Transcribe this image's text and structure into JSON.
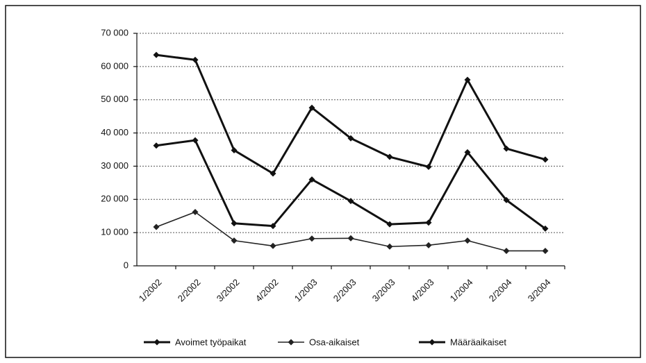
{
  "chart_data": {
    "type": "line",
    "categories": [
      "1/2002",
      "2/2002",
      "3/2002",
      "4/2002",
      "1/2003",
      "2/2003",
      "3/2003",
      "4/2003",
      "1/2004",
      "2/2004",
      "3/2004"
    ],
    "series": [
      {
        "name": "Avoimet työpaikat",
        "color": "#111111",
        "values": [
          63500,
          62000,
          34800,
          27800,
          47600,
          38400,
          32800,
          29800,
          56000,
          35300,
          32000
        ]
      },
      {
        "name": "Osa-aikaiset",
        "color": "#222222",
        "values": [
          11700,
          16200,
          7600,
          6000,
          8200,
          8300,
          5800,
          6200,
          7600,
          4500,
          4500
        ]
      },
      {
        "name": "Määräaikaiset",
        "color": "#111111",
        "values": [
          36200,
          37800,
          12800,
          12000,
          26000,
          19500,
          12500,
          13000,
          34200,
          19800,
          11200
        ]
      }
    ],
    "ylim": [
      0,
      70000
    ],
    "yticks": [
      {
        "value": 0,
        "label": "0"
      },
      {
        "value": 10000,
        "label": "10 000"
      },
      {
        "value": 20000,
        "label": "20 000"
      },
      {
        "value": 30000,
        "label": "30 000"
      },
      {
        "value": 40000,
        "label": "40 000"
      },
      {
        "value": 50000,
        "label": "50 000"
      },
      {
        "value": 60000,
        "label": "60 000"
      },
      {
        "value": 70000,
        "label": "70 000"
      }
    ],
    "grid": true,
    "legend": "bottom"
  }
}
